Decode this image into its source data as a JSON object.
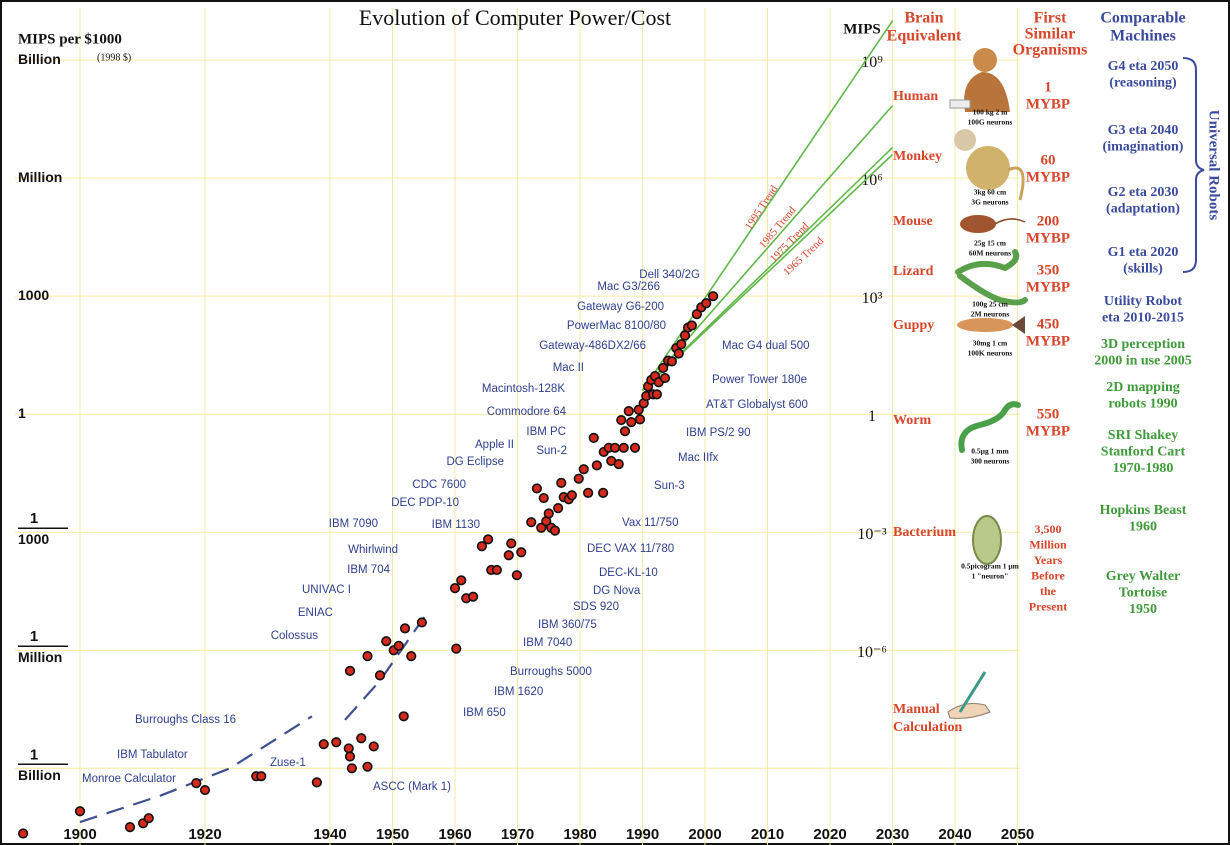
{
  "chart_data": {
    "type": "scatter",
    "title": "Evolution of Computer Power/Cost",
    "y_label": "MIPS per $1000",
    "y_sublabel": "(1998 $)",
    "y2_label": "MIPS",
    "log_scale": true,
    "grid": true,
    "color": "#d42a1e",
    "xlim": [
      1887.2,
      2084
    ],
    "xticks": [
      1900,
      1920,
      1940,
      1950,
      1960,
      1970,
      1980,
      1990,
      2000,
      2010,
      2020,
      2030,
      2040,
      2050
    ],
    "ylim": [
      1e-11,
      30000000000.0
    ],
    "yticks": [
      {
        "value": 1000000000.0,
        "label": "Billion"
      },
      {
        "value": 1000000.0,
        "label": "Million"
      },
      1000,
      1,
      {
        "value": 0.001,
        "label": [
          "1",
          "1000"
        ]
      },
      {
        "value": 1e-06,
        "label": [
          "1",
          "Million"
        ]
      },
      {
        "value": 1e-09,
        "label": [
          "1",
          "Billion"
        ]
      }
    ],
    "y2lim": [
      1e-11,
      30000000000.0
    ],
    "y2ticks": [
      {
        "value": 1000000000.0,
        "label": "10⁹"
      },
      {
        "value": 1000000.0,
        "label": "10⁶"
      },
      {
        "value": 1000,
        "label": "10³"
      },
      1,
      {
        "value": 0.001,
        "label": "10⁻³"
      },
      {
        "value": 1e-06,
        "label": "10⁻⁶"
      }
    ],
    "x": [
      1890.9,
      1900,
      1908,
      1910.1,
      1911,
      1918.6,
      1920,
      1928.2,
      1929,
      1937.9,
      1939,
      1941,
      1943,
      1943.2,
      1943.5,
      1945,
      1946,
      1947,
      1943.2,
      1946,
      1948,
      1949,
      1950.2,
      1951,
      1952,
      1951.8,
      1953,
      1954.7,
      1960,
      1960.2,
      1961,
      1961.8,
      1962.9,
      1964.3,
      1965.3,
      1965.8,
      1966.7,
      1968.6,
      1969,
      1969.9,
      1970.6,
      1972.2,
      1973.1,
      1973.8,
      1974.2,
      1974.6,
      1975,
      1975.4,
      1976,
      1976.5,
      1977,
      1977.4,
      1978.2,
      1978.7,
      1979.8,
      1980.6,
      1981.3,
      1982.2,
      1982.7,
      1983.7,
      1983.8,
      1984.6,
      1985,
      1985.6,
      1986.2,
      1986.6,
      1987,
      1987.2,
      1987.8,
      1988.2,
      1988.8,
      1989.4,
      1989.6,
      1990.2,
      1990.6,
      1990.9,
      1991.4,
      1991.7,
      1992,
      1992.3,
      1992.6,
      1993.3,
      1993.6,
      1994.1,
      1994.7,
      1995.4,
      1995.8,
      1996.2,
      1996.8,
      1997.3,
      1997.9,
      1998.7,
      1999.4,
      2000.2,
      2001.3
    ],
    "values": [
      2.2e-11,
      8.1e-11,
      3.2e-11,
      4e-11,
      5.4e-11,
      4.2e-10,
      2.8e-10,
      6.3e-10,
      6.3e-10,
      4.4e-10,
      4.1e-09,
      4.6e-09,
      3.2e-09,
      2e-09,
      1e-09,
      5.8e-09,
      1.1e-09,
      3.6e-09,
      3e-07,
      7.1e-07,
      2.3e-07,
      1.7e-06,
      1e-06,
      1.3e-06,
      3.6e-06,
      2.1e-08,
      7.1e-07,
      5.1e-06,
      3.8e-05,
      1.1e-06,
      6e-05,
      2.1e-05,
      2.3e-05,
      0.00044,
      0.00066,
      0.00011,
      0.00011,
      0.00026,
      0.00052,
      8.1e-05,
      0.00031,
      0.0018,
      0.013,
      0.0013,
      0.0074,
      0.0019,
      0.003,
      0.0013,
      0.0011,
      0.0041,
      0.018,
      0.0078,
      0.0069,
      0.0087,
      0.023,
      0.04,
      0.01,
      0.25,
      0.05,
      0.01,
      0.11,
      0.14,
      0.065,
      0.14,
      0.054,
      0.71,
      0.14,
      0.37,
      1.2,
      0.63,
      0.14,
      1.3,
      0.74,
      1.9,
      2.9,
      5.1,
      7.4,
      3.2,
      9.3,
      3.2,
      6.5,
      15,
      8.3,
      23,
      22,
      48,
      35,
      60,
      100,
      160,
      180,
      350,
      520,
      660,
      1000
    ],
    "trend_lines": [
      {
        "name": "1995 Trend",
        "color": "#5fb848",
        "x": [
          1990,
          2030
        ],
        "values": [
          4,
          10000000000.0
        ]
      },
      {
        "name": "1985 Trend",
        "color": "#5fb848",
        "x": [
          1990,
          2030
        ],
        "values": [
          4,
          70000000.0
        ]
      },
      {
        "name": "1975 Trend",
        "color": "#5fb848",
        "x": [
          1990,
          2030
        ],
        "values": [
          4,
          6000000.0
        ]
      },
      {
        "name": "1965 Trend",
        "color": "#5fb848",
        "x": [
          1990,
          2030
        ],
        "values": [
          4,
          4000000.0
        ]
      }
    ],
    "curve": {
      "color": "#3f4f8f",
      "x": [
        1900,
        1912.8,
        1924,
        1937.1,
        1940,
        1942.4,
        1948,
        1955.5
      ],
      "values": [
        4.3e-11,
        2e-10,
        1e-09,
        2.1e-08,
        null,
        1.7e-08,
        1.7e-07,
        8.7e-06
      ]
    },
    "machine_labels": [
      "Dell 340/2G",
      "Mac G3/266",
      "Gateway G6-200",
      "PowerMac 8100/80",
      "Gateway-486DX2/66",
      "Mac II",
      "Macintosh-128K",
      "Commodore 64",
      "IBM PC",
      "Apple II",
      "Sun-2",
      "DG Eclipse",
      "CDC 7600",
      "DEC PDP-10",
      "IBM 7090",
      "IBM 1130",
      "Whirlwind",
      "IBM 704",
      "UNIVAC I",
      "ENIAC",
      "Colossus",
      "Burroughs Class 16",
      "IBM Tabulator",
      "Monroe Calculator",
      "Zuse-1",
      "ASCC (Mark 1)",
      "Mac G4 dual 500",
      "Power Tower 180e",
      "AT&T Globalyst 600",
      "IBM PS/2 90",
      "Mac IIfx",
      "Sun-3",
      "Vax 11/750",
      "DEC VAX 11/780",
      "DEC-KL-10",
      "DG Nova",
      "SDS 920",
      "IBM 360/75",
      "IBM 7040",
      "Burroughs 5000",
      "IBM 1620",
      "IBM 650"
    ]
  },
  "side_panel": {
    "brain_header": [
      "Brain",
      "Equivalent"
    ],
    "organism_header": [
      "First",
      "Similar",
      "Organisms"
    ],
    "machine_header": [
      "Comparable",
      "Machines"
    ],
    "rows": [
      {
        "brain": [
          "Human"
        ],
        "sizes": [
          "100 kg    2 m",
          "100G neurons"
        ],
        "age": [
          "1",
          "MYBP"
        ]
      },
      {
        "brain": [
          "Monkey"
        ],
        "sizes": [
          "3kg    60 cm",
          "3G neurons"
        ],
        "age": [
          "60",
          "MYBP"
        ]
      },
      {
        "brain": [
          "Mouse"
        ],
        "sizes": [
          "25g    15 cm",
          "60M neurons"
        ],
        "age": [
          "200",
          "MYBP"
        ]
      },
      {
        "brain": [
          "Lizard"
        ],
        "sizes": [
          "100g   25 cm",
          "2M neurons"
        ],
        "age": [
          "350",
          "MYBP"
        ]
      },
      {
        "brain": [
          "Guppy"
        ],
        "sizes": [
          "30mg     1 cm",
          "100K neurons"
        ],
        "age": [
          "450",
          "MYBP"
        ]
      },
      {
        "brain": [
          "Worm"
        ],
        "sizes": [
          "0.5µg   1 mm",
          "300 neurons"
        ],
        "age": [
          "550",
          "MYBP"
        ]
      },
      {
        "brain": [
          "Bacterium"
        ],
        "sizes": [
          "0.5picogram 1 µm",
          "1 \"neuron\""
        ],
        "age": [
          "3,500",
          "Million",
          "Years",
          "Before",
          "the",
          "Present"
        ]
      },
      {
        "brain": [
          "Manual",
          "Calculation"
        ],
        "sizes": [],
        "age": []
      }
    ],
    "machines": [
      {
        "lines": [
          "G4 eta 2050",
          "(reasoning)"
        ],
        "color": "#3a4a9c"
      },
      {
        "lines": [
          "G3 eta 2040",
          "(imagination)"
        ],
        "color": "#3a4a9c"
      },
      {
        "lines": [
          "G2 eta 2030",
          "(adaptation)"
        ],
        "color": "#3a4a9c"
      },
      {
        "lines": [
          "G1 eta 2020",
          "(skills)"
        ],
        "color": "#3a4a9c"
      },
      {
        "lines": [
          "Utility Robot",
          "eta 2010-2015"
        ],
        "color": "#3a4a9c"
      },
      {
        "lines": [
          "3D perception",
          "2000 in use 2005"
        ],
        "color": "#3f9a3a"
      },
      {
        "lines": [
          "2D mapping",
          "robots 1990"
        ],
        "color": "#3f9a3a"
      },
      {
        "lines": [
          "SRI Shakey",
          "Stanford Cart",
          "1970-1980"
        ],
        "color": "#3f9a3a"
      },
      {
        "lines": [
          "Hopkins Beast",
          "1960"
        ],
        "color": "#3f9a3a"
      },
      {
        "lines": [
          "Grey Walter",
          "Tortoise",
          "1950"
        ],
        "color": "#3f9a3a"
      }
    ],
    "group_label": "Universal Robots"
  }
}
